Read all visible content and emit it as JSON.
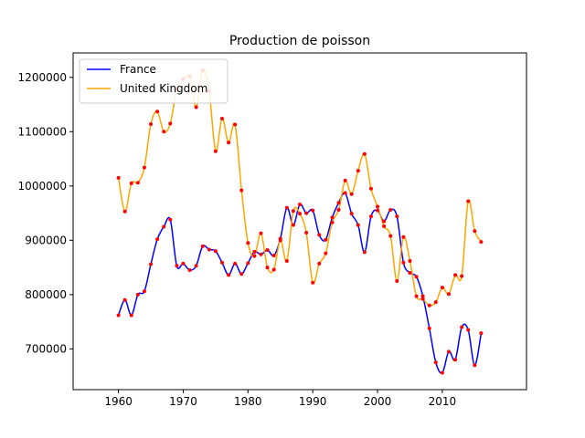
{
  "chart_data": {
    "type": "line",
    "title": "Production de poisson",
    "xlabel": "",
    "ylabel": "",
    "xlim": [
      1953,
      2023
    ],
    "ylim": [
      625000,
      1245000
    ],
    "xticks": [
      1960,
      1970,
      1980,
      1990,
      2000,
      2010
    ],
    "yticks": [
      700000,
      800000,
      900000,
      1000000,
      1100000,
      1200000
    ],
    "legend_position": "top-left",
    "grid": false,
    "x": [
      1960,
      1961,
      1962,
      1963,
      1964,
      1965,
      1966,
      1967,
      1968,
      1969,
      1970,
      1971,
      1972,
      1973,
      1974,
      1975,
      1976,
      1977,
      1978,
      1979,
      1980,
      1981,
      1982,
      1983,
      1984,
      1985,
      1986,
      1987,
      1988,
      1989,
      1990,
      1991,
      1992,
      1993,
      1994,
      1995,
      1996,
      1997,
      1998,
      1999,
      2000,
      2001,
      2002,
      2003,
      2004,
      2005,
      2006,
      2007,
      2008,
      2009,
      2010,
      2011,
      2012,
      2013,
      2014,
      2015,
      2016
    ],
    "series": [
      {
        "name": "France",
        "color": "#0000ff",
        "values": [
          762000,
          790000,
          762000,
          800000,
          806000,
          856000,
          902000,
          925000,
          938000,
          853000,
          857000,
          845000,
          853000,
          889000,
          883000,
          880000,
          859000,
          836000,
          857000,
          838000,
          858000,
          879000,
          874000,
          882000,
          872000,
          903000,
          960000,
          928000,
          966000,
          950000,
          955000,
          910000,
          901000,
          942000,
          969000,
          987000,
          949000,
          928000,
          878000,
          944000,
          955000,
          935000,
          956000,
          944000,
          859000,
          840000,
          833000,
          797000,
          738000,
          675000,
          656000,
          695000,
          680000,
          740000,
          735000,
          670000,
          729000
        ]
      },
      {
        "name": "United Kingdom",
        "color": "#ffa500",
        "values": [
          1015000,
          953000,
          1005000,
          1006000,
          1034000,
          1114000,
          1137000,
          1100000,
          1115000,
          1178000,
          1197000,
          1202000,
          1145000,
          1213000,
          1175000,
          1064000,
          1124000,
          1080000,
          1113000,
          992000,
          895000,
          871000,
          913000,
          850000,
          846000,
          900000,
          862000,
          954000,
          949000,
          914000,
          822000,
          857000,
          876000,
          933000,
          956000,
          1010000,
          985000,
          1028000,
          1059000,
          995000,
          962000,
          926000,
          908000,
          825000,
          906000,
          862000,
          797000,
          792000,
          780000,
          786000,
          813000,
          801000,
          836000,
          834000,
          972000,
          917000,
          897000
        ]
      }
    ],
    "markers": {
      "color": "#ff0000"
    }
  }
}
